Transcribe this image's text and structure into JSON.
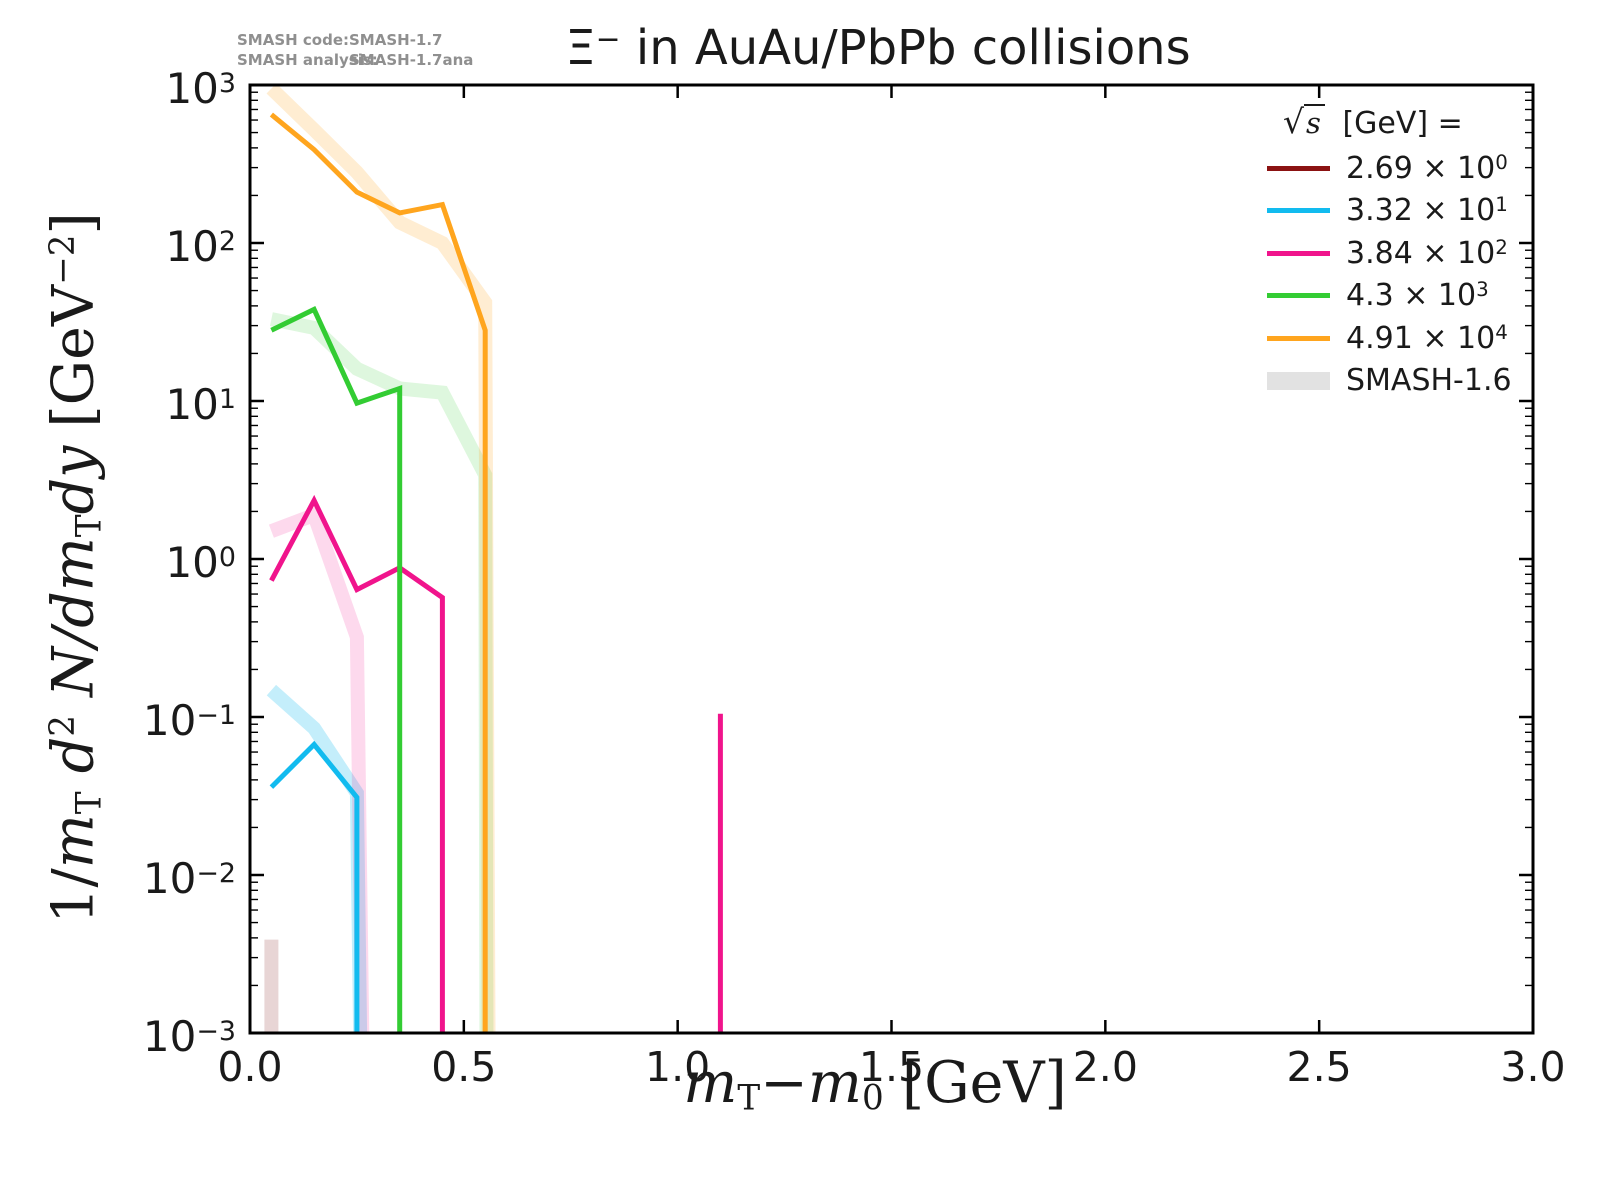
{
  "annotation": {
    "code_label": "SMASH code:",
    "code_value": "SMASH-1.7",
    "analysis_label": "SMASH analysis:",
    "analysis_value": "SMASH-1.7ana"
  },
  "title": {
    "particle": "Ξ",
    "charge_sup": "−",
    "rest": " in AuAu/PbPb collisions"
  },
  "x_axis": {
    "label_parts": [
      {
        "text": "m",
        "style": "it"
      },
      {
        "text": "T",
        "style": "sub"
      },
      {
        "text": "−",
        "style": "rm"
      },
      {
        "text": "m",
        "style": "it"
      },
      {
        "text": "0",
        "style": "sub"
      },
      {
        "text": " [GeV]",
        "style": "rm"
      }
    ],
    "tick_labels": [
      "0.0",
      "0.5",
      "1.0",
      "1.5",
      "2.0",
      "2.5",
      "3.0"
    ],
    "tick_values": [
      0,
      0.5,
      1,
      1.5,
      2,
      2.5,
      3
    ]
  },
  "y_axis": {
    "label_parts": [
      {
        "text": "1/",
        "style": "rm"
      },
      {
        "text": "m",
        "style": "it"
      },
      {
        "text": "T",
        "style": "sub"
      },
      {
        "text": " d",
        "style": "it"
      },
      {
        "text": "2",
        "style": "sup"
      },
      {
        "text": " N",
        "style": "it"
      },
      {
        "text": "/d",
        "style": "it"
      },
      {
        "text": "m",
        "style": "it"
      },
      {
        "text": "T",
        "style": "sub"
      },
      {
        "text": "d",
        "style": "it"
      },
      {
        "text": "y",
        "style": "it"
      },
      {
        "text": " [GeV",
        "style": "rm"
      },
      {
        "text": "−2",
        "style": "sup"
      },
      {
        "text": "]",
        "style": "rm"
      }
    ],
    "tick_exponents": [
      "3",
      "2",
      "1",
      "0",
      "−1",
      "−2",
      "−3"
    ]
  },
  "legend": {
    "title_root": "s",
    "title_rest": " [GeV] =",
    "entries": [
      {
        "base": "2.69 × 10",
        "exp": "0",
        "color": "#8b1212",
        "swatch": "line"
      },
      {
        "base": "3.32 × 10",
        "exp": "1",
        "color": "#12bbef",
        "swatch": "line"
      },
      {
        "base": "3.84 × 10",
        "exp": "2",
        "color": "#f0148c",
        "swatch": "line"
      },
      {
        "base": "4.3 × 10",
        "exp": "3",
        "color": "#33cc33",
        "swatch": "line"
      },
      {
        "base": "4.91 × 10",
        "exp": "4",
        "color": "#ffa51e",
        "swatch": "line"
      },
      {
        "base": "SMASH-1.6",
        "exp": "",
        "color": "#e2e2e2",
        "swatch": "band"
      }
    ]
  },
  "chart_data": {
    "type": "line",
    "title": "Ξ⁻ in AuAu/PbPb collisions",
    "xlabel": "mT−m0 [GeV]",
    "ylabel": "1/mT d²N/dmTdy [GeV⁻²]",
    "x_range": [
      0.0,
      3.0
    ],
    "y_scale": "log",
    "y_range": [
      0.001,
      1000
    ],
    "grid": false,
    "legend_position": "upper right",
    "legend_title": "√s [GeV] =",
    "series": [
      {
        "name": "SMASH-1.7 sqrt_s = 2.69×10⁰ GeV",
        "color": "#8b1212",
        "width": 5,
        "segments": []
      },
      {
        "name": "SMASH-1.7 sqrt_s = 3.32×10¹ GeV",
        "color": "#12bbef",
        "width": 5,
        "segments": [
          [
            [
              0.05,
              0.036
            ],
            [
              0.15,
              0.067
            ],
            [
              0.25,
              0.031
            ],
            [
              0.25,
              0.0008
            ]
          ]
        ]
      },
      {
        "name": "SMASH-1.7 sqrt_s = 3.84×10² GeV",
        "color": "#f0148c",
        "width": 5,
        "segments": [
          [
            [
              0.05,
              0.73
            ],
            [
              0.15,
              2.35
            ],
            [
              0.25,
              0.64
            ],
            [
              0.35,
              0.88
            ],
            [
              0.45,
              0.57
            ],
            [
              0.45,
              0.0008
            ]
          ],
          [
            [
              1.1,
              0.0008
            ],
            [
              1.1,
              0.105
            ]
          ]
        ]
      },
      {
        "name": "SMASH-1.7 sqrt_s = 4.3×10³ GeV",
        "color": "#33cc33",
        "width": 5,
        "segments": [
          [
            [
              0.05,
              28
            ],
            [
              0.15,
              38
            ],
            [
              0.25,
              9.7
            ],
            [
              0.35,
              12
            ],
            [
              0.35,
              0.0008
            ]
          ]
        ]
      },
      {
        "name": "SMASH-1.7 sqrt_s = 4.91×10⁴ GeV",
        "color": "#ffa51e",
        "width": 5,
        "segments": [
          [
            [
              0.05,
              650
            ],
            [
              0.15,
              390
            ],
            [
              0.25,
              210
            ],
            [
              0.35,
              155
            ],
            [
              0.45,
              175
            ],
            [
              0.55,
              28
            ],
            [
              0.55,
              0.0008
            ]
          ]
        ]
      }
    ],
    "bands": [
      {
        "name": "SMASH-1.6 sqrt_s = 2.69×10⁰ GeV",
        "color": "rgba(150,62,62,0.22)",
        "width": 14,
        "points": [
          [
            0.05,
            0.0039
          ],
          [
            0.05,
            0.0008
          ]
        ]
      },
      {
        "name": "SMASH-1.6 sqrt_s = 3.32×10¹ GeV",
        "color": "rgba(18,187,239,0.25)",
        "width": 14,
        "points": [
          [
            0.05,
            0.148
          ],
          [
            0.15,
            0.085
          ],
          [
            0.25,
            0.033
          ],
          [
            0.258,
            0.0008
          ]
        ]
      },
      {
        "name": "SMASH-1.6 sqrt_s = 3.84×10² GeV",
        "color": "rgba(240,20,140,0.16)",
        "width": 14,
        "points": [
          [
            0.05,
            1.5
          ],
          [
            0.15,
            1.9
          ],
          [
            0.25,
            0.32
          ],
          [
            0.263,
            0.0008
          ]
        ]
      },
      {
        "name": "SMASH-1.6 sqrt_s = 4.3×10³ GeV",
        "color": "rgba(51,204,51,0.16)",
        "width": 14,
        "points": [
          [
            0.05,
            33
          ],
          [
            0.15,
            29
          ],
          [
            0.25,
            16
          ],
          [
            0.35,
            12
          ],
          [
            0.45,
            11.3
          ],
          [
            0.55,
            3.4
          ],
          [
            0.553,
            0.0008
          ]
        ]
      },
      {
        "name": "SMASH-1.6 sqrt_s = 4.91×10⁴ GeV",
        "color": "rgba(255,165,30,0.20)",
        "width": 14,
        "points": [
          [
            0.05,
            950
          ],
          [
            0.15,
            520
          ],
          [
            0.25,
            280
          ],
          [
            0.35,
            135
          ],
          [
            0.45,
            100
          ],
          [
            0.55,
            42
          ],
          [
            0.558,
            0.0008
          ]
        ]
      }
    ]
  }
}
